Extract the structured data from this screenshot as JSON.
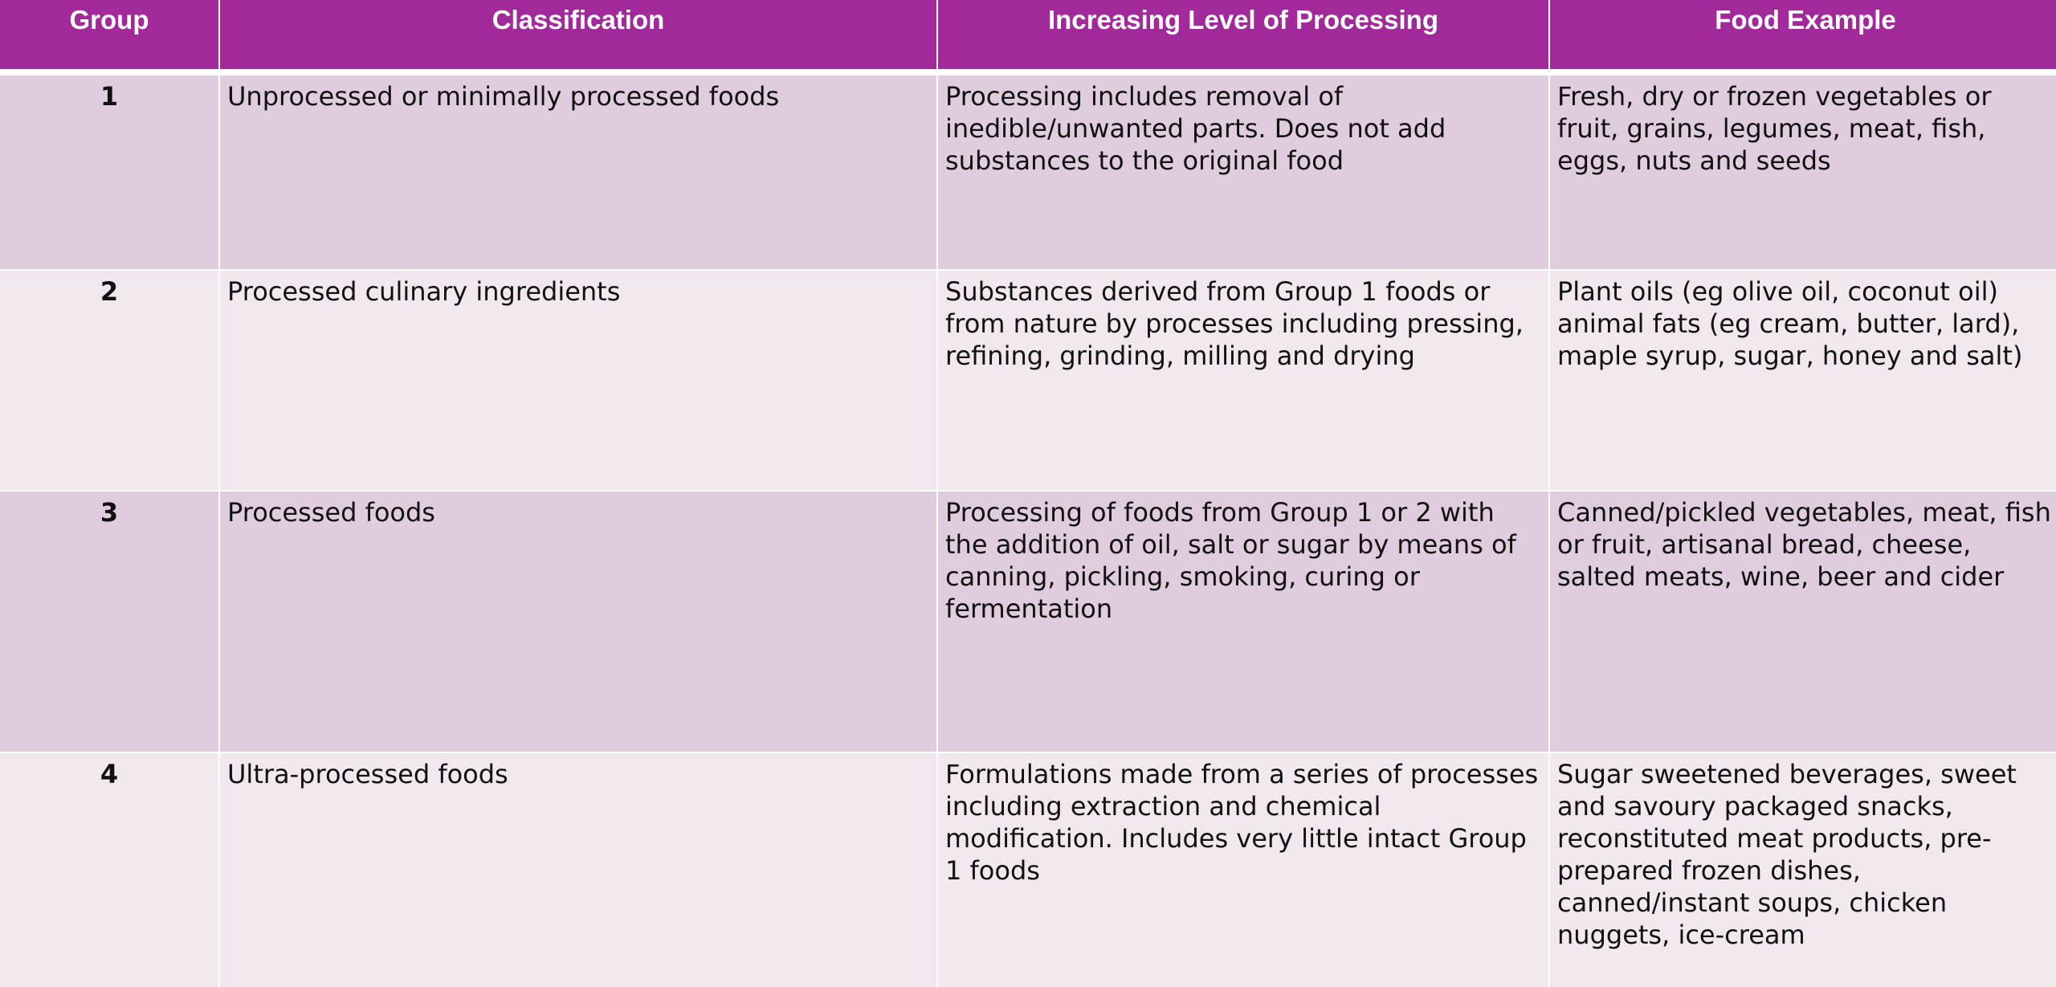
{
  "table": {
    "headers": [
      "Group",
      "Classification",
      "Increasing Level of Processing",
      "Food Example"
    ],
    "rows": [
      {
        "group": "1",
        "classification": "Unprocessed or minimally processed foods",
        "processing": "Processing includes removal of inedible/unwanted parts. Does not add substances to the original food",
        "example": "Fresh, dry or frozen vegetables or fruit, grains, legumes, meat, fish, eggs, nuts and seeds"
      },
      {
        "group": "2",
        "classification": "Processed culinary ingredients",
        "processing": "Substances derived from Group 1 foods or from nature by processes including pressing, refining, grinding, milling and drying",
        "example": "Plant oils (eg olive oil, coconut oil) animal fats (eg cream, butter, lard), maple syrup, sugar, honey and salt)"
      },
      {
        "group": "3",
        "classification": "Processed foods",
        "processing": "Processing of foods from Group 1 or 2 with the addition of oil, salt or sugar by means of canning, pickling, smoking, curing or fermentation",
        "example": "Canned/pickled vegetables, meat, fish or fruit, artisanal bread, cheese, salted meats, wine, beer and cider"
      },
      {
        "group": "4",
        "classification": "Ultra-processed foods",
        "processing": "Formulations made from a series of processes including extraction and chemical modification. Includes very little intact Group 1 foods",
        "example": "Sugar sweetened beverages, sweet and savoury packaged snacks, reconstituted meat products, pre-prepared frozen dishes, canned/instant soups, chicken nuggets, ice-cream"
      }
    ]
  },
  "colors": {
    "header_bg": "#a1299a",
    "header_text": "#ffffff",
    "row_dark": "#dfcddd",
    "row_light": "#f0e7ef"
  }
}
